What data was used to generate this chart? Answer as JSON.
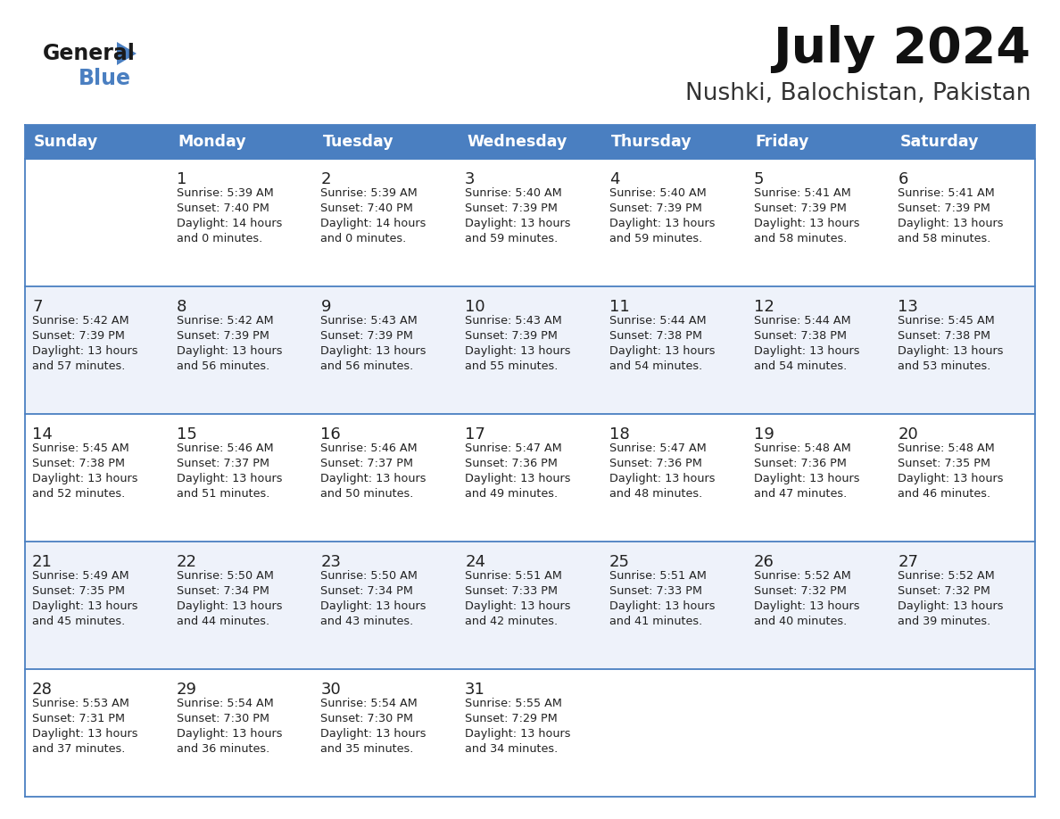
{
  "title": "July 2024",
  "subtitle": "Nushki, Balochistan, Pakistan",
  "header_bg": "#4a7fc1",
  "header_text_color": "#FFFFFF",
  "cell_bg_light": "#FFFFFF",
  "cell_bg_alt": "#eef2fa",
  "day_names": [
    "Sunday",
    "Monday",
    "Tuesday",
    "Wednesday",
    "Thursday",
    "Friday",
    "Saturday"
  ],
  "grid_line_color": "#4a7fc1",
  "cell_text_color": "#222222",
  "logo_general_color": "#1a1a1a",
  "logo_blue_color": "#4a7fc1",
  "logo_triangle_color": "#4a7fc1",
  "weeks": [
    [
      {
        "date": "",
        "sunrise": "",
        "sunset": "",
        "hours": 0,
        "minutes": 0
      },
      {
        "date": "1",
        "sunrise": "5:39 AM",
        "sunset": "7:40 PM",
        "hours": 14,
        "minutes": 0
      },
      {
        "date": "2",
        "sunrise": "5:39 AM",
        "sunset": "7:40 PM",
        "hours": 14,
        "minutes": 0
      },
      {
        "date": "3",
        "sunrise": "5:40 AM",
        "sunset": "7:39 PM",
        "hours": 13,
        "minutes": 59
      },
      {
        "date": "4",
        "sunrise": "5:40 AM",
        "sunset": "7:39 PM",
        "hours": 13,
        "minutes": 59
      },
      {
        "date": "5",
        "sunrise": "5:41 AM",
        "sunset": "7:39 PM",
        "hours": 13,
        "minutes": 58
      },
      {
        "date": "6",
        "sunrise": "5:41 AM",
        "sunset": "7:39 PM",
        "hours": 13,
        "minutes": 58
      }
    ],
    [
      {
        "date": "7",
        "sunrise": "5:42 AM",
        "sunset": "7:39 PM",
        "hours": 13,
        "minutes": 57
      },
      {
        "date": "8",
        "sunrise": "5:42 AM",
        "sunset": "7:39 PM",
        "hours": 13,
        "minutes": 56
      },
      {
        "date": "9",
        "sunrise": "5:43 AM",
        "sunset": "7:39 PM",
        "hours": 13,
        "minutes": 56
      },
      {
        "date": "10",
        "sunrise": "5:43 AM",
        "sunset": "7:39 PM",
        "hours": 13,
        "minutes": 55
      },
      {
        "date": "11",
        "sunrise": "5:44 AM",
        "sunset": "7:38 PM",
        "hours": 13,
        "minutes": 54
      },
      {
        "date": "12",
        "sunrise": "5:44 AM",
        "sunset": "7:38 PM",
        "hours": 13,
        "minutes": 54
      },
      {
        "date": "13",
        "sunrise": "5:45 AM",
        "sunset": "7:38 PM",
        "hours": 13,
        "minutes": 53
      }
    ],
    [
      {
        "date": "14",
        "sunrise": "5:45 AM",
        "sunset": "7:38 PM",
        "hours": 13,
        "minutes": 52
      },
      {
        "date": "15",
        "sunrise": "5:46 AM",
        "sunset": "7:37 PM",
        "hours": 13,
        "minutes": 51
      },
      {
        "date": "16",
        "sunrise": "5:46 AM",
        "sunset": "7:37 PM",
        "hours": 13,
        "minutes": 50
      },
      {
        "date": "17",
        "sunrise": "5:47 AM",
        "sunset": "7:36 PM",
        "hours": 13,
        "minutes": 49
      },
      {
        "date": "18",
        "sunrise": "5:47 AM",
        "sunset": "7:36 PM",
        "hours": 13,
        "minutes": 48
      },
      {
        "date": "19",
        "sunrise": "5:48 AM",
        "sunset": "7:36 PM",
        "hours": 13,
        "minutes": 47
      },
      {
        "date": "20",
        "sunrise": "5:48 AM",
        "sunset": "7:35 PM",
        "hours": 13,
        "minutes": 46
      }
    ],
    [
      {
        "date": "21",
        "sunrise": "5:49 AM",
        "sunset": "7:35 PM",
        "hours": 13,
        "minutes": 45
      },
      {
        "date": "22",
        "sunrise": "5:50 AM",
        "sunset": "7:34 PM",
        "hours": 13,
        "minutes": 44
      },
      {
        "date": "23",
        "sunrise": "5:50 AM",
        "sunset": "7:34 PM",
        "hours": 13,
        "minutes": 43
      },
      {
        "date": "24",
        "sunrise": "5:51 AM",
        "sunset": "7:33 PM",
        "hours": 13,
        "minutes": 42
      },
      {
        "date": "25",
        "sunrise": "5:51 AM",
        "sunset": "7:33 PM",
        "hours": 13,
        "minutes": 41
      },
      {
        "date": "26",
        "sunrise": "5:52 AM",
        "sunset": "7:32 PM",
        "hours": 13,
        "minutes": 40
      },
      {
        "date": "27",
        "sunrise": "5:52 AM",
        "sunset": "7:32 PM",
        "hours": 13,
        "minutes": 39
      }
    ],
    [
      {
        "date": "28",
        "sunrise": "5:53 AM",
        "sunset": "7:31 PM",
        "hours": 13,
        "minutes": 37
      },
      {
        "date": "29",
        "sunrise": "5:54 AM",
        "sunset": "7:30 PM",
        "hours": 13,
        "minutes": 36
      },
      {
        "date": "30",
        "sunrise": "5:54 AM",
        "sunset": "7:30 PM",
        "hours": 13,
        "minutes": 35
      },
      {
        "date": "31",
        "sunrise": "5:55 AM",
        "sunset": "7:29 PM",
        "hours": 13,
        "minutes": 34
      },
      {
        "date": "",
        "sunrise": "",
        "sunset": "",
        "hours": 0,
        "minutes": 0
      },
      {
        "date": "",
        "sunrise": "",
        "sunset": "",
        "hours": 0,
        "minutes": 0
      },
      {
        "date": "",
        "sunrise": "",
        "sunset": "",
        "hours": 0,
        "minutes": 0
      }
    ]
  ]
}
